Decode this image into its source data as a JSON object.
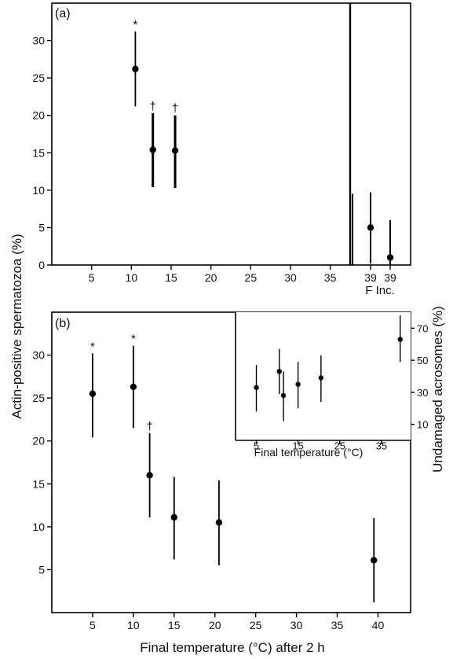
{
  "figure": {
    "y_label_left": "Actin-positive spermatozoa (%)",
    "x_label_bottom": "Final temperature (°C) after 2 h",
    "y_label_right": "Undamaged acrosomes (%)"
  },
  "chart_data": [
    {
      "panel": "(a)",
      "type": "scatter",
      "error_bars": true,
      "grid": false,
      "xlim": [
        0,
        37.5
      ],
      "ylim": [
        0,
        35
      ],
      "x_ticks": [
        5,
        10,
        15,
        20,
        25,
        30,
        35
      ],
      "y_ticks": [
        0,
        5,
        10,
        15,
        20,
        25,
        30
      ],
      "points": [
        {
          "x": 10.5,
          "y": 26.2,
          "low": 21.2,
          "high": 31.2,
          "marker": "*"
        },
        {
          "x": 12.7,
          "y": 15.4,
          "low": 10.4,
          "high": 20.3,
          "marker": "†"
        },
        {
          "x": 15.5,
          "y": 15.3,
          "low": 10.3,
          "high": 20.0,
          "marker": "†"
        }
      ],
      "side_panel": {
        "xlabel": "F Inc.",
        "categories": [
          "39",
          "39"
        ],
        "points": [
          {
            "category": "39",
            "y": 5.0,
            "low": 0.2,
            "high": 9.7
          },
          {
            "category": "39",
            "y": 1.0,
            "low": 0.0,
            "high": 6.0
          }
        ],
        "extra_bar_at_divider": {
          "low": 0.0,
          "high": 9.5
        }
      }
    },
    {
      "panel": "(b)",
      "type": "scatter",
      "error_bars": true,
      "grid": false,
      "xlim": [
        0,
        44
      ],
      "ylim": [
        0,
        35
      ],
      "x_ticks": [
        5,
        10,
        15,
        20,
        25,
        30,
        35,
        40
      ],
      "y_ticks": [
        5,
        10,
        15,
        20,
        25,
        30
      ],
      "points": [
        {
          "x": 5,
          "y": 25.5,
          "low": 20.4,
          "high": 30.2,
          "marker": "*"
        },
        {
          "x": 10,
          "y": 26.3,
          "low": 21.5,
          "high": 31.1,
          "marker": "*"
        },
        {
          "x": 12,
          "y": 16.0,
          "low": 11.1,
          "high": 20.9,
          "marker": "†"
        },
        {
          "x": 15,
          "y": 11.1,
          "low": 6.2,
          "high": 15.8,
          "marker": ""
        },
        {
          "x": 20.5,
          "y": 10.5,
          "low": 5.5,
          "high": 15.4,
          "marker": ""
        },
        {
          "x": 39.5,
          "y": 6.1,
          "low": 1.2,
          "high": 11.0,
          "marker": ""
        }
      ],
      "inset": {
        "type": "scatter",
        "error_bars": true,
        "xlabel": "Final temperature (°C)",
        "ylabel": "Undamaged acrosomes (%)",
        "xlim": [
          0,
          42
        ],
        "ylim": [
          0,
          80
        ],
        "x_ticks": [
          5,
          15,
          25,
          35
        ],
        "y_ticks": [
          10,
          30,
          50,
          70
        ],
        "y_axis_side": "right",
        "points": [
          {
            "x": 5,
            "y": 33,
            "low": 18,
            "high": 47
          },
          {
            "x": 10.5,
            "y": 43,
            "low": 29,
            "high": 57
          },
          {
            "x": 11.5,
            "y": 28,
            "low": 12,
            "high": 43
          },
          {
            "x": 15,
            "y": 35,
            "low": 20,
            "high": 49
          },
          {
            "x": 20.5,
            "y": 39,
            "low": 24,
            "high": 53
          },
          {
            "x": 39.5,
            "y": 63,
            "low": 49,
            "high": 78
          }
        ]
      }
    }
  ]
}
